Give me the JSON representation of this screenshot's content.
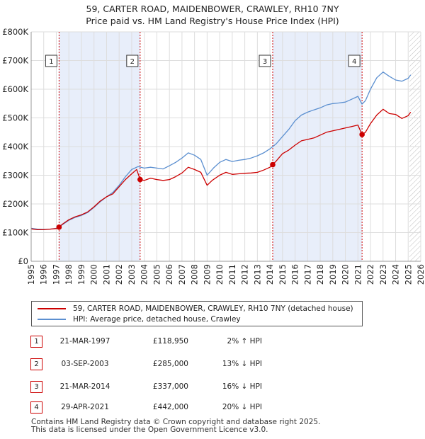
{
  "chart_data": {
    "type": "line",
    "title": "59, CARTER ROAD, MAIDENBOWER, CRAWLEY, RH10 7NY",
    "subtitle": "Price paid vs. HM Land Registry's House Price Index (HPI)",
    "xlim": [
      1995,
      2026
    ],
    "ylim": [
      0,
      800000
    ],
    "x_ticks": [
      "1995",
      "1996",
      "1997",
      "1998",
      "1999",
      "2000",
      "2001",
      "2002",
      "2003",
      "2004",
      "2005",
      "2006",
      "2007",
      "2008",
      "2009",
      "2010",
      "2011",
      "2012",
      "2013",
      "2014",
      "2015",
      "2016",
      "2017",
      "2018",
      "2019",
      "2020",
      "2021",
      "2022",
      "2023",
      "2024",
      "2025",
      "2026"
    ],
    "y_ticks": [
      {
        "value": 0,
        "label": "£0"
      },
      {
        "value": 100000,
        "label": "£100K"
      },
      {
        "value": 200000,
        "label": "£200K"
      },
      {
        "value": 300000,
        "label": "£300K"
      },
      {
        "value": 400000,
        "label": "£400K"
      },
      {
        "value": 500000,
        "label": "£500K"
      },
      {
        "value": 600000,
        "label": "£600K"
      },
      {
        "value": 700000,
        "label": "£700K"
      },
      {
        "value": 800000,
        "label": "£800K"
      }
    ],
    "shaded_ranges": [
      [
        1997.22,
        2003.67
      ],
      [
        2014.22,
        2021.33
      ]
    ],
    "future_hatch_from": 2025.1,
    "series": [
      {
        "name": "59, CARTER ROAD, MAIDENBOWER, CRAWLEY, RH10 7NY (detached house)",
        "color": "#cc0000",
        "points": [
          [
            1995.0,
            113000
          ],
          [
            1995.5,
            110000
          ],
          [
            1996.0,
            110000
          ],
          [
            1996.5,
            112000
          ],
          [
            1997.0,
            114000
          ],
          [
            1997.22,
            118950
          ],
          [
            1997.5,
            130000
          ],
          [
            1998.0,
            145000
          ],
          [
            1998.5,
            155000
          ],
          [
            1999.0,
            162000
          ],
          [
            1999.5,
            172000
          ],
          [
            2000.0,
            190000
          ],
          [
            2000.5,
            210000
          ],
          [
            2001.0,
            225000
          ],
          [
            2001.5,
            235000
          ],
          [
            2002.0,
            260000
          ],
          [
            2002.5,
            285000
          ],
          [
            2003.0,
            305000
          ],
          [
            2003.4,
            320000
          ],
          [
            2003.67,
            285000
          ],
          [
            2004.0,
            282000
          ],
          [
            2004.5,
            290000
          ],
          [
            2005.0,
            285000
          ],
          [
            2005.5,
            282000
          ],
          [
            2006.0,
            285000
          ],
          [
            2006.5,
            295000
          ],
          [
            2007.0,
            308000
          ],
          [
            2007.5,
            328000
          ],
          [
            2008.0,
            320000
          ],
          [
            2008.5,
            310000
          ],
          [
            2009.0,
            265000
          ],
          [
            2009.4,
            282000
          ],
          [
            2010.0,
            300000
          ],
          [
            2010.5,
            310000
          ],
          [
            2011.0,
            303000
          ],
          [
            2011.5,
            305000
          ],
          [
            2012.0,
            307000
          ],
          [
            2012.5,
            308000
          ],
          [
            2013.0,
            310000
          ],
          [
            2013.5,
            318000
          ],
          [
            2014.0,
            328000
          ],
          [
            2014.22,
            337000
          ],
          [
            2014.5,
            350000
          ],
          [
            2015.0,
            375000
          ],
          [
            2015.5,
            388000
          ],
          [
            2016.0,
            405000
          ],
          [
            2016.5,
            420000
          ],
          [
            2017.0,
            425000
          ],
          [
            2017.5,
            430000
          ],
          [
            2018.0,
            440000
          ],
          [
            2018.5,
            450000
          ],
          [
            2019.0,
            455000
          ],
          [
            2019.5,
            460000
          ],
          [
            2020.0,
            465000
          ],
          [
            2020.5,
            470000
          ],
          [
            2021.0,
            475000
          ],
          [
            2021.33,
            442000
          ],
          [
            2021.6,
            450000
          ],
          [
            2022.0,
            480000
          ],
          [
            2022.5,
            510000
          ],
          [
            2023.0,
            530000
          ],
          [
            2023.5,
            515000
          ],
          [
            2024.0,
            512000
          ],
          [
            2024.5,
            498000
          ],
          [
            2025.0,
            508000
          ],
          [
            2025.2,
            520000
          ]
        ]
      },
      {
        "name": "HPI: Average price, detached house, Crawley",
        "color": "#5b8fd0",
        "points": [
          [
            1995.0,
            115000
          ],
          [
            1995.5,
            112000
          ],
          [
            1996.0,
            111000
          ],
          [
            1996.5,
            112000
          ],
          [
            1997.0,
            115000
          ],
          [
            1997.5,
            128000
          ],
          [
            1998.0,
            143000
          ],
          [
            1998.5,
            153000
          ],
          [
            1999.0,
            160000
          ],
          [
            1999.5,
            170000
          ],
          [
            2000.0,
            188000
          ],
          [
            2000.5,
            208000
          ],
          [
            2001.0,
            225000
          ],
          [
            2001.5,
            240000
          ],
          [
            2002.0,
            265000
          ],
          [
            2002.5,
            295000
          ],
          [
            2003.0,
            320000
          ],
          [
            2003.5,
            330000
          ],
          [
            2004.0,
            325000
          ],
          [
            2004.5,
            328000
          ],
          [
            2005.0,
            325000
          ],
          [
            2005.5,
            322000
          ],
          [
            2006.0,
            333000
          ],
          [
            2006.5,
            345000
          ],
          [
            2007.0,
            360000
          ],
          [
            2007.5,
            378000
          ],
          [
            2008.0,
            370000
          ],
          [
            2008.5,
            355000
          ],
          [
            2009.0,
            300000
          ],
          [
            2009.5,
            325000
          ],
          [
            2010.0,
            345000
          ],
          [
            2010.5,
            355000
          ],
          [
            2011.0,
            348000
          ],
          [
            2011.5,
            352000
          ],
          [
            2012.0,
            355000
          ],
          [
            2012.5,
            360000
          ],
          [
            2013.0,
            368000
          ],
          [
            2013.5,
            378000
          ],
          [
            2014.0,
            392000
          ],
          [
            2014.5,
            410000
          ],
          [
            2015.0,
            435000
          ],
          [
            2015.5,
            460000
          ],
          [
            2016.0,
            490000
          ],
          [
            2016.5,
            510000
          ],
          [
            2017.0,
            520000
          ],
          [
            2017.5,
            528000
          ],
          [
            2018.0,
            535000
          ],
          [
            2018.5,
            545000
          ],
          [
            2019.0,
            550000
          ],
          [
            2019.5,
            552000
          ],
          [
            2020.0,
            555000
          ],
          [
            2020.5,
            565000
          ],
          [
            2021.0,
            575000
          ],
          [
            2021.33,
            548000
          ],
          [
            2021.6,
            560000
          ],
          [
            2022.0,
            600000
          ],
          [
            2022.5,
            640000
          ],
          [
            2023.0,
            660000
          ],
          [
            2023.5,
            645000
          ],
          [
            2024.0,
            632000
          ],
          [
            2024.5,
            628000
          ],
          [
            2025.0,
            638000
          ],
          [
            2025.2,
            650000
          ]
        ]
      }
    ],
    "sales": [
      {
        "n": "1",
        "x": 1997.22,
        "price": 118950,
        "date": "21-MAR-1997",
        "price_label": "£118,950",
        "hpi": "2% ↑ HPI"
      },
      {
        "n": "2",
        "x": 2003.67,
        "price": 285000,
        "date": "03-SEP-2003",
        "price_label": "£285,000",
        "hpi": "13% ↓ HPI"
      },
      {
        "n": "3",
        "x": 2014.22,
        "price": 337000,
        "date": "21-MAR-2014",
        "price_label": "£337,000",
        "hpi": "16% ↓ HPI"
      },
      {
        "n": "4",
        "x": 2021.33,
        "price": 442000,
        "date": "29-APR-2021",
        "price_label": "£442,000",
        "hpi": "20% ↓ HPI"
      }
    ],
    "legend": {
      "property_label": "59, CARTER ROAD, MAIDENBOWER, CRAWLEY, RH10 7NY (detached house)",
      "hpi_label": "HPI: Average price, detached house, Crawley"
    }
  },
  "footer": {
    "line1": "Contains HM Land Registry data © Crown copyright and database right 2025.",
    "line2": "This data is licensed under the Open Government Licence v3.0."
  }
}
